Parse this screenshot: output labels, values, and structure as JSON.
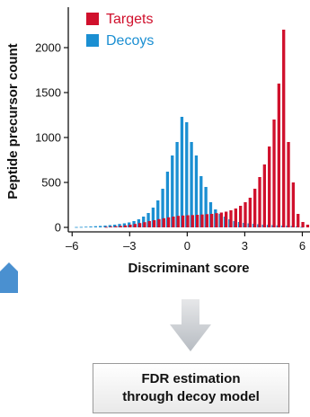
{
  "chart_data": {
    "type": "bar",
    "xlabel": "Discriminant score",
    "ylabel": "Peptide precursor count",
    "xlim": [
      -6.2,
      6.4
    ],
    "ylim": [
      -50,
      2450
    ],
    "xticks": [
      -6,
      -3,
      0,
      3,
      6
    ],
    "xtick_labels": [
      "–6",
      "–3",
      "0",
      "3",
      "6"
    ],
    "yticks": [
      0,
      500,
      1000,
      1500,
      2000
    ],
    "ytick_labels": [
      "0",
      "500",
      "1000",
      "1500",
      "2000"
    ],
    "bin_width": 0.25,
    "legend_position": "top-left",
    "series": [
      {
        "name": "Targets",
        "color": "#d0102c",
        "x": [
          -5.75,
          -5.5,
          -5.25,
          -5,
          -4.75,
          -4.5,
          -4.25,
          -4,
          -3.75,
          -3.5,
          -3.25,
          -3,
          -2.75,
          -2.5,
          -2.25,
          -2,
          -1.75,
          -1.5,
          -1.25,
          -1,
          -0.75,
          -0.5,
          -0.25,
          0,
          0.25,
          0.5,
          0.75,
          1,
          1.25,
          1.5,
          1.75,
          2,
          2.25,
          2.5,
          2.75,
          3,
          3.25,
          3.5,
          3.75,
          4,
          4.25,
          4.5,
          4.75,
          5,
          5.25,
          5.5,
          5.75,
          6,
          6.25
        ],
        "values": [
          0,
          0,
          0,
          0,
          0,
          0,
          5,
          8,
          12,
          16,
          22,
          30,
          38,
          48,
          58,
          70,
          80,
          92,
          102,
          112,
          120,
          128,
          132,
          135,
          137,
          140,
          143,
          147,
          150,
          158,
          165,
          175,
          190,
          210,
          240,
          280,
          330,
          430,
          560,
          700,
          900,
          1200,
          1600,
          2200,
          950,
          500,
          150,
          60,
          30
        ]
      },
      {
        "name": "Decoys",
        "color": "#1b8fd2",
        "x": [
          -5.75,
          -5.5,
          -5.25,
          -5,
          -4.75,
          -4.5,
          -4.25,
          -4,
          -3.75,
          -3.5,
          -3.25,
          -3,
          -2.75,
          -2.5,
          -2.25,
          -2,
          -1.75,
          -1.5,
          -1.25,
          -1,
          -0.75,
          -0.5,
          -0.25,
          0,
          0.25,
          0.5,
          0.75,
          1,
          1.25,
          1.5,
          1.75,
          2,
          2.25,
          2.5,
          2.75,
          3,
          3.25,
          3.5,
          3.75,
          4,
          4.25,
          4.5,
          4.75,
          5,
          5.25,
          5.5,
          5.75,
          6,
          6.25
        ],
        "values": [
          4,
          5,
          7,
          10,
          13,
          16,
          20,
          25,
          30,
          38,
          45,
          55,
          70,
          90,
          120,
          160,
          220,
          300,
          430,
          620,
          800,
          950,
          1230,
          1170,
          950,
          800,
          570,
          450,
          280,
          200,
          150,
          120,
          90,
          70,
          60,
          50,
          45,
          40,
          35,
          30,
          28,
          25,
          22,
          20,
          18,
          15,
          10,
          5,
          0
        ]
      }
    ]
  },
  "box": {
    "line1": "FDR estimation",
    "line2": "through decoy model"
  }
}
